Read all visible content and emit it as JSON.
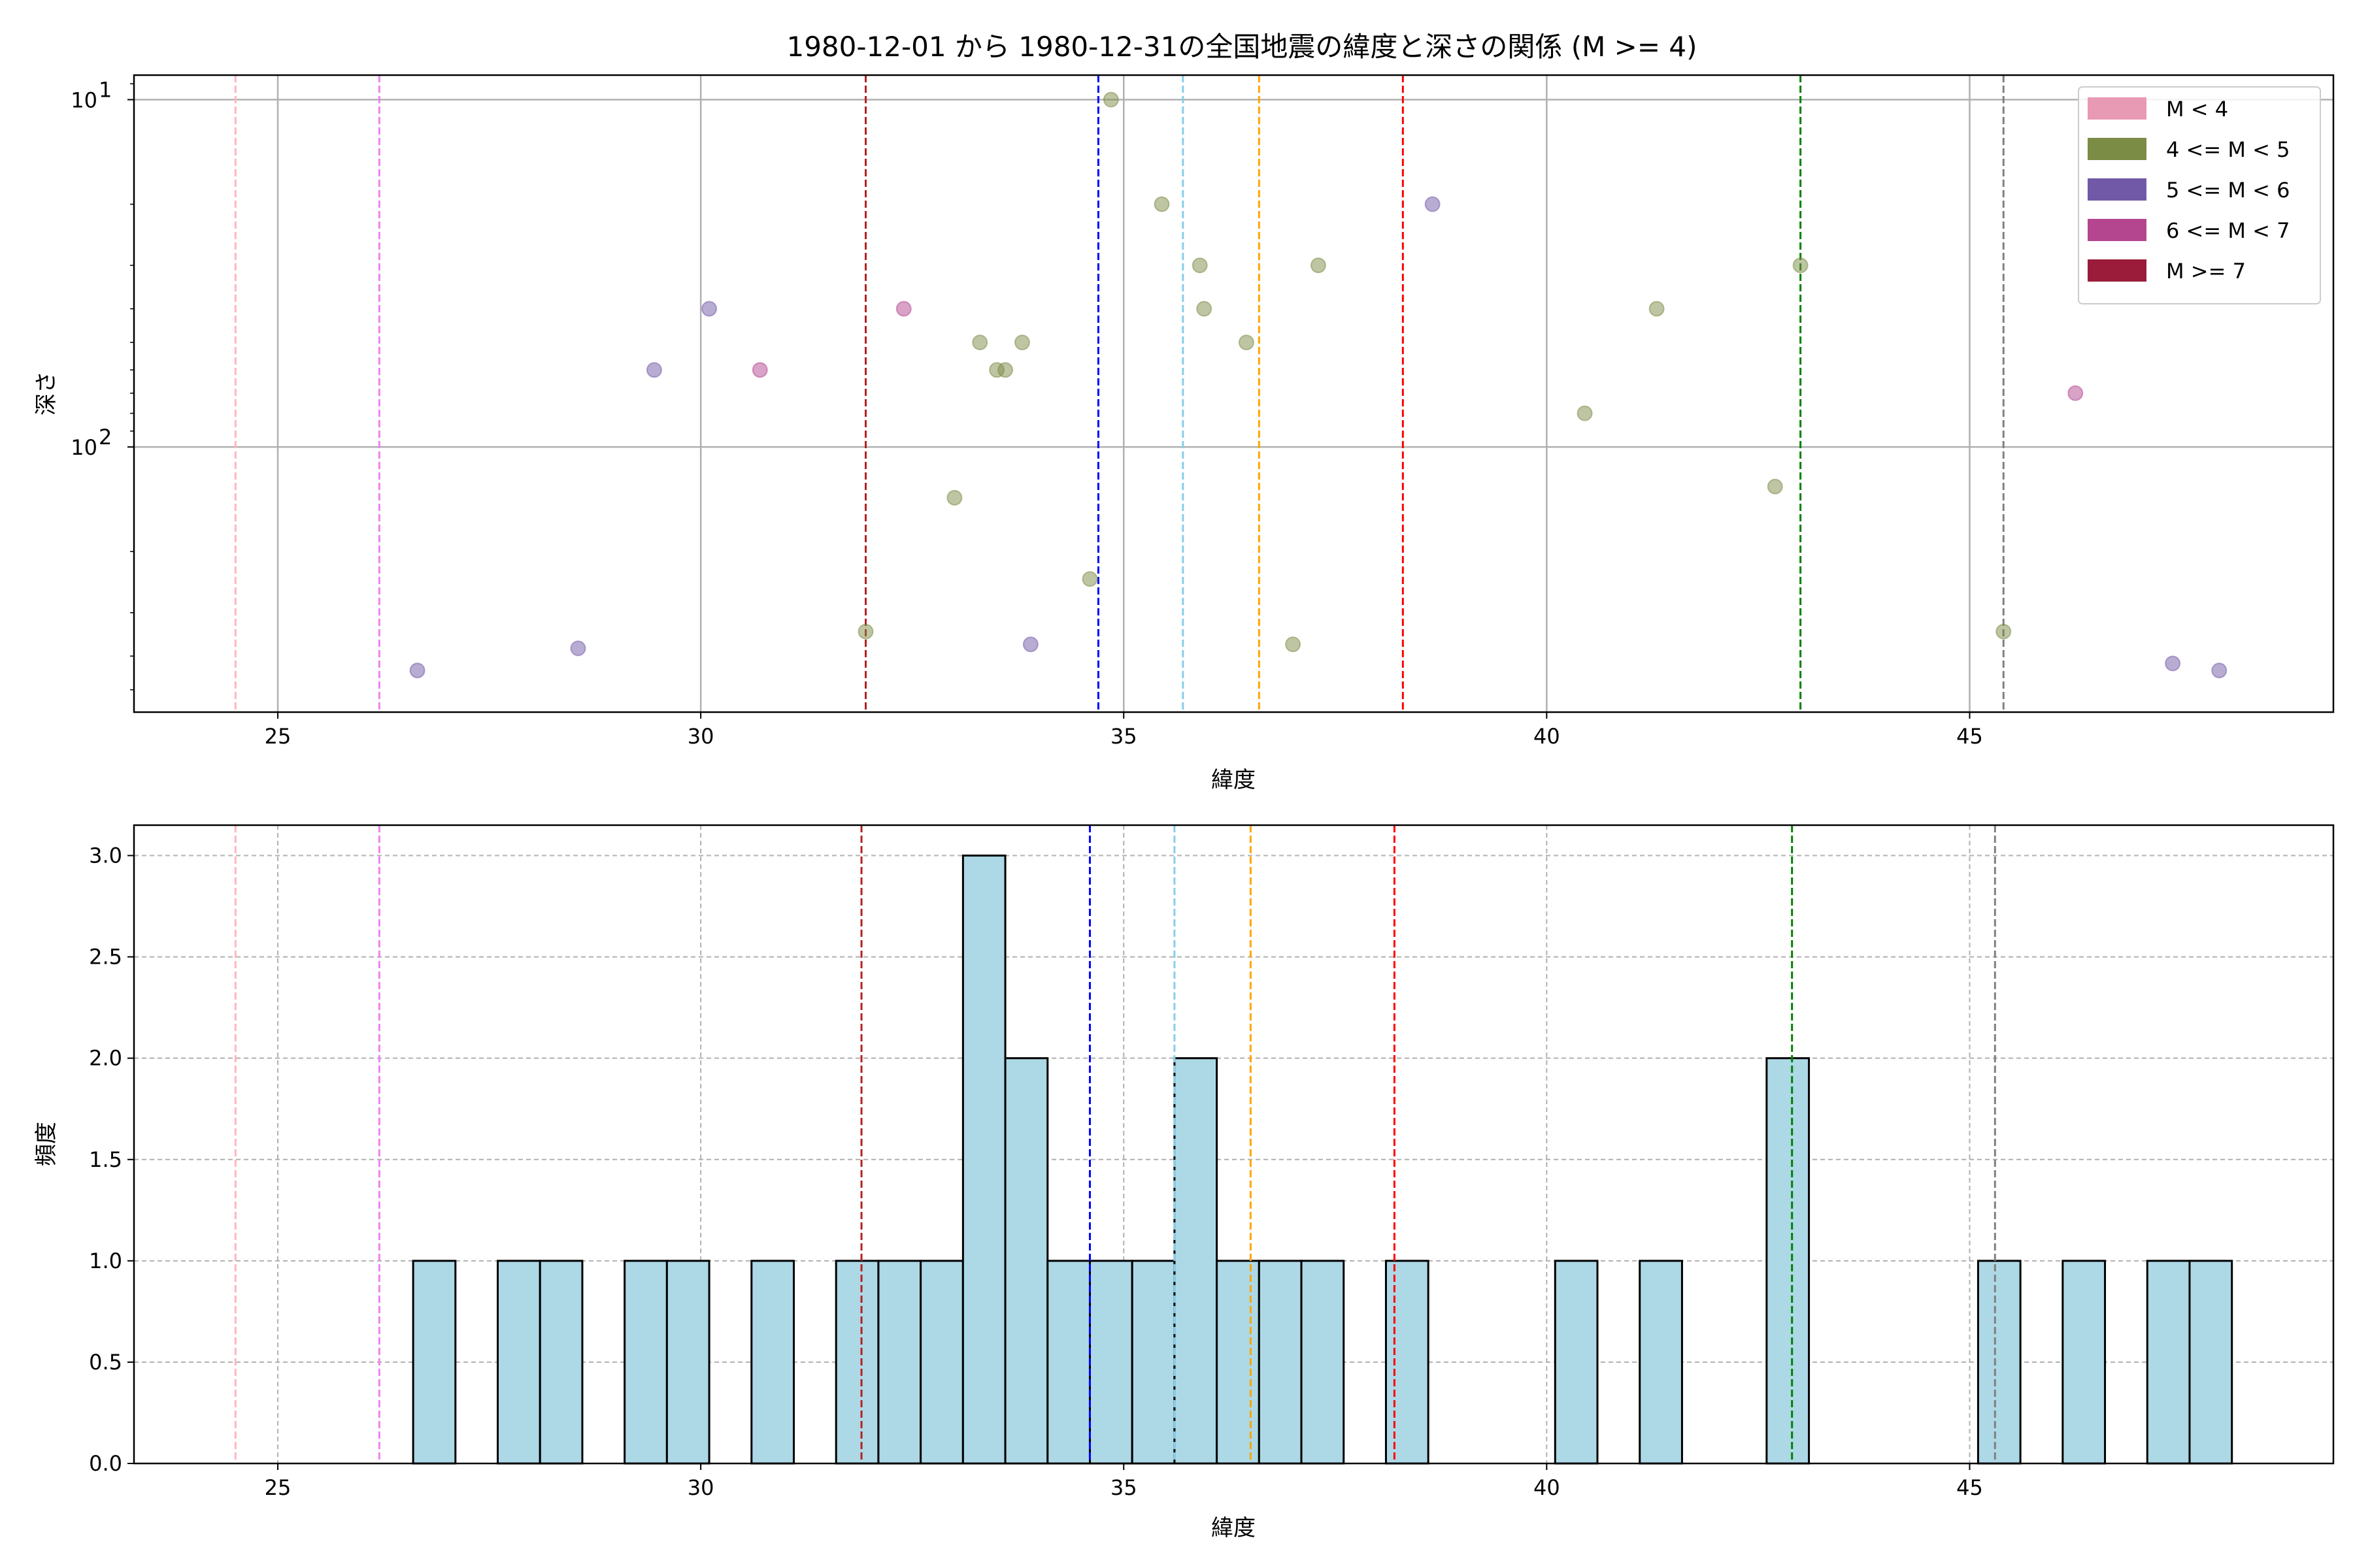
{
  "title": "1980-12-01 から 1980-12-31の全国地震の緯度と深さの関係 (M >= 4)",
  "scatter_panel": {
    "xlabel": "緯度",
    "ylabel": "深さ",
    "x_tick_labels": [
      "25",
      "30",
      "35",
      "40",
      "45"
    ],
    "y_tick_labels": [
      {
        "base": "10",
        "exp": "1"
      },
      {
        "base": "10",
        "exp": "2"
      }
    ]
  },
  "hist_panel": {
    "xlabel": "緯度",
    "ylabel": "頻度",
    "x_tick_labels": [
      "25",
      "30",
      "35",
      "40",
      "45"
    ],
    "y_tick_labels": [
      "0.0",
      "0.5",
      "1.0",
      "1.5",
      "2.0",
      "2.5",
      "3.0"
    ]
  },
  "legend": {
    "placement": "top-right",
    "items": [
      {
        "label": "M < 4",
        "color": "#e899b4"
      },
      {
        "label": "4 <= M < 5",
        "color": "#7b8c45"
      },
      {
        "label": "5 <= M < 6",
        "color": "#7259a7"
      },
      {
        "label": "6 <= M < 7",
        "color": "#b4468f"
      },
      {
        "label": "M >= 7",
        "color": "#9b1c3a"
      }
    ]
  },
  "chart_data": [
    {
      "type": "scatter",
      "title": "1980-12-01 から 1980-12-31の全国地震の緯度と深さの関係 (M >= 4)",
      "xlabel": "緯度",
      "ylabel": "深さ",
      "xlim": [
        23.3,
        49.3
      ],
      "ylim": [
        580,
        8.5
      ],
      "y_scale": "log",
      "y_inverted": true,
      "grid": true,
      "legend_placement": "top-right",
      "series": [
        {
          "name": "4 <= M < 5",
          "color": "#7b8c45",
          "points": [
            {
              "x": 34.85,
              "y": 10
            },
            {
              "x": 35.45,
              "y": 20
            },
            {
              "x": 35.9,
              "y": 30
            },
            {
              "x": 35.95,
              "y": 40
            },
            {
              "x": 37.3,
              "y": 30
            },
            {
              "x": 36.45,
              "y": 50
            },
            {
              "x": 33.3,
              "y": 50
            },
            {
              "x": 33.5,
              "y": 60
            },
            {
              "x": 33.6,
              "y": 60
            },
            {
              "x": 33.8,
              "y": 50
            },
            {
              "x": 33.0,
              "y": 140
            },
            {
              "x": 34.6,
              "y": 240
            },
            {
              "x": 31.95,
              "y": 340
            },
            {
              "x": 37.0,
              "y": 370
            },
            {
              "x": 41.3,
              "y": 40
            },
            {
              "x": 40.45,
              "y": 80
            },
            {
              "x": 43.0,
              "y": 30
            },
            {
              "x": 42.7,
              "y": 130
            },
            {
              "x": 45.4,
              "y": 340
            }
          ]
        },
        {
          "name": "5 <= M < 6",
          "color": "#7259a7",
          "points": [
            {
              "x": 26.65,
              "y": 440
            },
            {
              "x": 28.55,
              "y": 380
            },
            {
              "x": 29.45,
              "y": 60
            },
            {
              "x": 30.1,
              "y": 40
            },
            {
              "x": 33.9,
              "y": 370
            },
            {
              "x": 38.65,
              "y": 20
            },
            {
              "x": 47.4,
              "y": 420
            },
            {
              "x": 47.95,
              "y": 440
            }
          ]
        },
        {
          "name": "6 <= M < 7",
          "color": "#b4468f",
          "points": [
            {
              "x": 30.7,
              "y": 60
            },
            {
              "x": 32.4,
              "y": 40
            },
            {
              "x": 46.25,
              "y": 70
            }
          ]
        }
      ],
      "reference_lines_x": [
        {
          "x": 24.5,
          "color": "#ffb6c1"
        },
        {
          "x": 26.2,
          "color": "#ee82ee"
        },
        {
          "x": 31.95,
          "color": "#b22222"
        },
        {
          "x": 34.7,
          "color": "#0000ff"
        },
        {
          "x": 35.7,
          "color": "#87ceeb"
        },
        {
          "x": 36.6,
          "color": "#ffa500"
        },
        {
          "x": 38.3,
          "color": "#ff0000"
        },
        {
          "x": 43.0,
          "color": "#008000"
        },
        {
          "x": 45.4,
          "color": "#808080"
        }
      ]
    },
    {
      "type": "bar",
      "xlabel": "緯度",
      "ylabel": "頻度",
      "xlim": [
        23.3,
        49.3
      ],
      "ylim": [
        0,
        3.15
      ],
      "grid": true,
      "bar_color": "#add8e6",
      "bins": [
        {
          "start": 26.6,
          "end": 27.1,
          "value": 1
        },
        {
          "start": 27.6,
          "end": 28.1,
          "value": 1
        },
        {
          "start": 28.1,
          "end": 28.6,
          "value": 1
        },
        {
          "start": 29.1,
          "end": 29.6,
          "value": 1
        },
        {
          "start": 29.6,
          "end": 30.1,
          "value": 1
        },
        {
          "start": 30.6,
          "end": 31.1,
          "value": 1
        },
        {
          "start": 31.6,
          "end": 32.1,
          "value": 1
        },
        {
          "start": 32.1,
          "end": 32.6,
          "value": 1
        },
        {
          "start": 32.6,
          "end": 33.1,
          "value": 1
        },
        {
          "start": 33.1,
          "end": 33.6,
          "value": 3
        },
        {
          "start": 33.6,
          "end": 34.1,
          "value": 2
        },
        {
          "start": 34.1,
          "end": 34.6,
          "value": 1
        },
        {
          "start": 34.6,
          "end": 35.1,
          "value": 1
        },
        {
          "start": 35.1,
          "end": 35.6,
          "value": 1
        },
        {
          "start": 35.6,
          "end": 36.1,
          "value": 2
        },
        {
          "start": 36.1,
          "end": 36.6,
          "value": 1
        },
        {
          "start": 36.6,
          "end": 37.1,
          "value": 1
        },
        {
          "start": 37.1,
          "end": 37.6,
          "value": 1
        },
        {
          "start": 38.1,
          "end": 38.6,
          "value": 1
        },
        {
          "start": 40.1,
          "end": 40.6,
          "value": 1
        },
        {
          "start": 41.1,
          "end": 41.6,
          "value": 1
        },
        {
          "start": 42.6,
          "end": 43.1,
          "value": 2
        },
        {
          "start": 45.1,
          "end": 45.6,
          "value": 1
        },
        {
          "start": 46.1,
          "end": 46.6,
          "value": 1
        },
        {
          "start": 47.1,
          "end": 47.6,
          "value": 1
        },
        {
          "start": 47.6,
          "end": 48.1,
          "value": 1
        }
      ],
      "reference_lines_x": [
        {
          "x": 24.5,
          "color": "#ffb6c1"
        },
        {
          "x": 26.2,
          "color": "#ee82ee"
        },
        {
          "x": 31.9,
          "color": "#b22222"
        },
        {
          "x": 34.6,
          "color": "#0000ff"
        },
        {
          "x": 35.6,
          "color": "#87ceeb"
        },
        {
          "x": 36.5,
          "color": "#ffa500"
        },
        {
          "x": 38.2,
          "color": "#ff0000"
        },
        {
          "x": 42.9,
          "color": "#008000"
        },
        {
          "x": 45.3,
          "color": "#808080"
        }
      ]
    }
  ]
}
